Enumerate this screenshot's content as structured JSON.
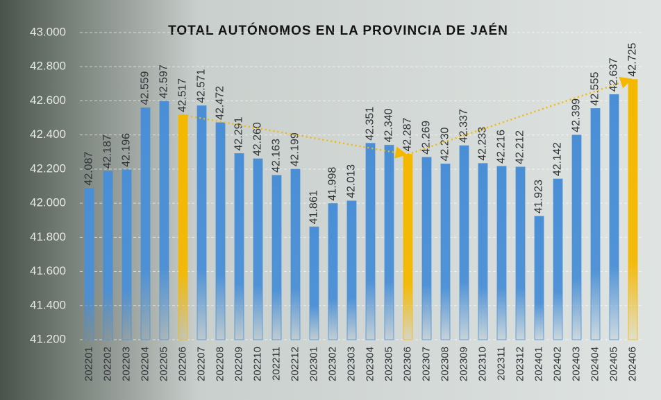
{
  "chart_data": {
    "type": "bar",
    "title": "TOTAL AUTÓNOMOS EN LA PROVINCIA DE JAÉN",
    "categories": [
      "202201",
      "202202",
      "202203",
      "202204",
      "202205",
      "202206",
      "202207",
      "202208",
      "202209",
      "202210",
      "202211",
      "202212",
      "202301",
      "202302",
      "202303",
      "202304",
      "202305",
      "202306",
      "202307",
      "202308",
      "202309",
      "202310",
      "202311",
      "202312",
      "202401",
      "202402",
      "202403",
      "202404",
      "202405",
      "202406"
    ],
    "values": [
      42087,
      42187,
      42196,
      42559,
      42597,
      42517,
      42571,
      42472,
      42291,
      42260,
      42163,
      42199,
      41861,
      41998,
      42013,
      42351,
      42340,
      42287,
      42269,
      42230,
      42337,
      42233,
      42216,
      42212,
      41923,
      42142,
      42399,
      42555,
      42637,
      42725
    ],
    "value_labels": [
      "42.087",
      "42.187",
      "42.196",
      "42.559",
      "42.597",
      "42.517",
      "42.571",
      "42.472",
      "42.291",
      "42.260",
      "42.163",
      "42.199",
      "41.861",
      "41.998",
      "42.013",
      "42.351",
      "42.340",
      "42.287",
      "42.269",
      "42.230",
      "42.337",
      "42.233",
      "42.216",
      "42.212",
      "41.923",
      "42.142",
      "42.399",
      "42.555",
      "42.637",
      "42.725"
    ],
    "colors": [
      "#4a8fd6",
      "#4a8fd6",
      "#4a8fd6",
      "#4a8fd6",
      "#4a8fd6",
      "#f5b800",
      "#4a8fd6",
      "#4a8fd6",
      "#4a8fd6",
      "#4a8fd6",
      "#4a8fd6",
      "#4a8fd6",
      "#4a8fd6",
      "#4a8fd6",
      "#4a8fd6",
      "#4a8fd6",
      "#4a8fd6",
      "#f5b800",
      "#4a8fd6",
      "#4a8fd6",
      "#4a8fd6",
      "#4a8fd6",
      "#4a8fd6",
      "#4a8fd6",
      "#4a8fd6",
      "#4a8fd6",
      "#4a8fd6",
      "#4a8fd6",
      "#4a8fd6",
      "#f5b800"
    ],
    "ylim": [
      41200,
      43000
    ],
    "yticks": [
      {
        "value": 41200,
        "label": "41.200"
      },
      {
        "value": 41400,
        "label": "41.400"
      },
      {
        "value": 41600,
        "label": "41.600"
      },
      {
        "value": 41800,
        "label": "41.800"
      },
      {
        "value": 42000,
        "label": "42.000"
      },
      {
        "value": 42200,
        "label": "42.200"
      },
      {
        "value": 42400,
        "label": "42.400"
      },
      {
        "value": 42600,
        "label": "42.600"
      },
      {
        "value": 42800,
        "label": "42.800"
      },
      {
        "value": 43000,
        "label": "43.000"
      }
    ],
    "grid": true
  }
}
